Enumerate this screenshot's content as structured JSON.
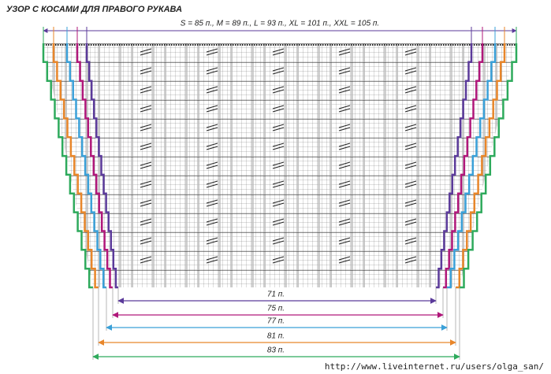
{
  "header": {
    "title": "УЗОР С КОСАМИ ДЛЯ ПРАВОГО РУКАВА"
  },
  "top_label": "S = 85 п., M = 89 п., L = 93 п., XL = 101 п., XXL = 105 п.",
  "sizes": [
    {
      "label": "71 п.",
      "color": "#5b3a9a"
    },
    {
      "label": "75 п.",
      "color": "#b0177a"
    },
    {
      "label": "77 п.",
      "color": "#3aa0d8"
    },
    {
      "label": "81 п.",
      "color": "#e8862a"
    },
    {
      "label": "83 п.",
      "color": "#2eaa5c"
    }
  ],
  "footer": "http://www.liveinternet.ru/users/olga_san/"
}
